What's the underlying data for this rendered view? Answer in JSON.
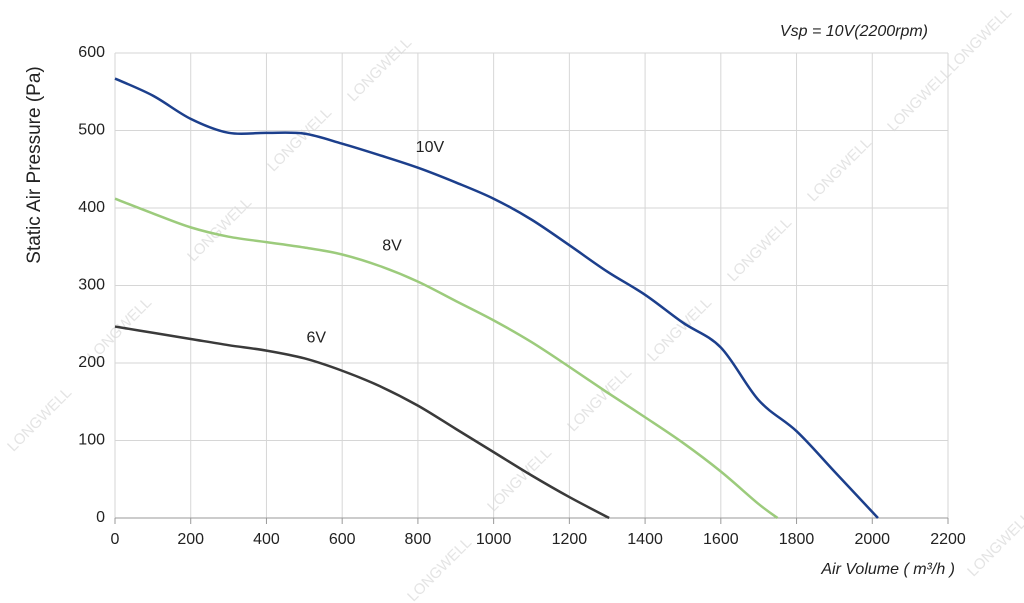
{
  "chart_data": {
    "type": "line",
    "title": "Vsp = 10V(2200rpm)",
    "x_label": "Air Volume ( m³/h )",
    "y_label": "Static Air Pressure  (Pa)",
    "watermark": "LONGWELL",
    "xlim": [
      0,
      2200
    ],
    "ylim": [
      0,
      600
    ],
    "xticks": [
      0,
      200,
      400,
      600,
      800,
      1000,
      1200,
      1400,
      1600,
      1800,
      2000,
      2200
    ],
    "yticks": [
      0,
      100,
      200,
      300,
      400,
      500,
      600
    ],
    "grid": true,
    "series": [
      {
        "name": "10V",
        "color": "#1c3f8c",
        "x": [
          0,
          100,
          200,
          300,
          400,
          500,
          600,
          700,
          800,
          900,
          1000,
          1100,
          1200,
          1300,
          1400,
          1500,
          1600,
          1700,
          1800,
          1900,
          2015
        ],
        "values": [
          567,
          545,
          515,
          497,
          497,
          496,
          483,
          468,
          452,
          433,
          412,
          385,
          352,
          318,
          288,
          252,
          220,
          152,
          112,
          60,
          0
        ]
      },
      {
        "name": "8V",
        "color": "#9ccb7c",
        "x": [
          0,
          100,
          200,
          300,
          400,
          500,
          600,
          700,
          800,
          900,
          1000,
          1100,
          1200,
          1300,
          1400,
          1500,
          1600,
          1700,
          1750
        ],
        "values": [
          412,
          393,
          375,
          363,
          356,
          349,
          340,
          325,
          305,
          280,
          255,
          227,
          195,
          162,
          130,
          97,
          60,
          18,
          0
        ]
      },
      {
        "name": "6V",
        "color": "#3a3a3a",
        "x": [
          0,
          100,
          200,
          300,
          400,
          500,
          600,
          700,
          800,
          900,
          1000,
          1100,
          1200,
          1305
        ],
        "values": [
          247,
          239,
          231,
          223,
          216,
          206,
          190,
          170,
          145,
          115,
          85,
          55,
          27,
          0
        ]
      }
    ]
  }
}
